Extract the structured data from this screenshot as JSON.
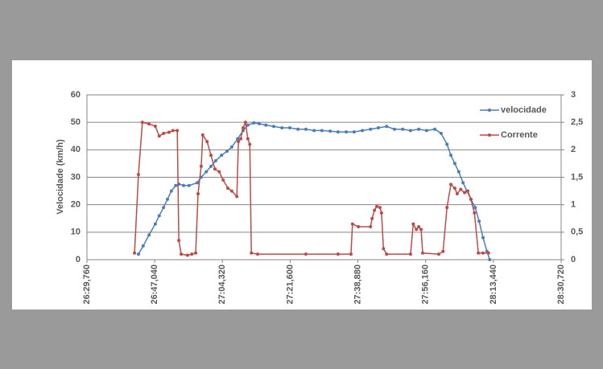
{
  "chart_data": {
    "type": "line",
    "y_label": "Velocidade (km/h)",
    "xlim": [
      1589.76,
      1710.72
    ],
    "xticks": [
      {
        "value": 1589.76,
        "label": "26:29,760"
      },
      {
        "value": 1607.04,
        "label": "26:47,040"
      },
      {
        "value": 1624.32,
        "label": "27:04,320"
      },
      {
        "value": 1641.6,
        "label": "27:21,600"
      },
      {
        "value": 1658.88,
        "label": "27:38,880"
      },
      {
        "value": 1676.16,
        "label": "27:56,160"
      },
      {
        "value": 1693.44,
        "label": "28:13,440"
      },
      {
        "value": 1710.72,
        "label": "28:30,720"
      }
    ],
    "ylim": [
      0,
      60
    ],
    "yticks": [
      0,
      10,
      20,
      30,
      40,
      50,
      60
    ],
    "y2lim": [
      0,
      3
    ],
    "y2ticks": [
      0,
      {
        "value": 0.5,
        "label": "0,5"
      },
      1,
      {
        "value": 1.5,
        "label": "1,5"
      },
      2,
      {
        "value": 2.5,
        "label": "2,5"
      },
      3
    ],
    "grid": true,
    "legend": "top-right",
    "series": [
      {
        "name": "velocidade",
        "color": "#4a7ebb",
        "x": [
          1602.9,
          1604.1,
          1605.6,
          1607.2,
          1608.2,
          1609.3,
          1610.3,
          1611.3,
          1612.4,
          1613.2,
          1614.4,
          1615.8,
          1617.9,
          1618.9,
          1620.2,
          1621.4,
          1622.6,
          1624.1,
          1625.5,
          1626.7,
          1628.2,
          1629.6,
          1630.8,
          1632.3,
          1633.7,
          1635.4,
          1637.4,
          1639.5,
          1641.5,
          1643.6,
          1645.6,
          1647.7,
          1649.7,
          1651.8,
          1653.8,
          1655.9,
          1657.9,
          1660.0,
          1662.1,
          1664.1,
          1666.2,
          1668.2,
          1670.3,
          1672.3,
          1674.4,
          1676.4,
          1678.5,
          1680.1,
          1681.6,
          1682.6,
          1683.6,
          1684.6,
          1685.7,
          1686.7,
          1687.7,
          1688.8,
          1689.8,
          1690.8,
          1691.8,
          1692.5
        ],
        "values": [
          2,
          5,
          9,
          13,
          16,
          19,
          22,
          25,
          27,
          27.5,
          27,
          27,
          28,
          30,
          32,
          34,
          36,
          38,
          39.5,
          41,
          44,
          47,
          49,
          49.8,
          49.5,
          49,
          48.5,
          48,
          48,
          47.5,
          47.5,
          47,
          47,
          46.8,
          46.5,
          46.5,
          46.5,
          47,
          47.5,
          48,
          48.5,
          47.5,
          47.5,
          47,
          47.5,
          47,
          47.5,
          46,
          42,
          38,
          35,
          32,
          28,
          25,
          22,
          19,
          14,
          8,
          3,
          0
        ]
      },
      {
        "name": "Corrente",
        "color": "#be4b48",
        "axis": "y2",
        "x": [
          1601.9,
          1602.9,
          1603.9,
          1605.6,
          1607.2,
          1608.2,
          1609.3,
          1610.7,
          1611.7,
          1612.8,
          1613.2,
          1613.8,
          1615.4,
          1616.5,
          1617.5,
          1618.1,
          1618.9,
          1619.3,
          1620.4,
          1621.4,
          1622.4,
          1623.5,
          1624.5,
          1625.7,
          1626.7,
          1628.0,
          1628.4,
          1629.0,
          1629.6,
          1630.2,
          1630.8,
          1631.3,
          1631.7,
          1633.3,
          1645.6,
          1653.8,
          1657.1,
          1657.5,
          1659.0,
          1662.1,
          1662.5,
          1663.1,
          1663.7,
          1664.5,
          1664.9,
          1665.4,
          1666.2,
          1672.3,
          1673.0,
          1673.8,
          1674.4,
          1675.0,
          1675.4,
          1679.5,
          1680.6,
          1681.6,
          1682.6,
          1683.6,
          1684.2,
          1685.1,
          1686.1,
          1686.9,
          1687.7,
          1688.6,
          1689.6,
          1690.8,
          1692.2
        ],
        "values": [
          0.12,
          1.55,
          2.5,
          2.47,
          2.43,
          2.25,
          2.3,
          2.32,
          2.35,
          2.35,
          0.35,
          0.1,
          0.08,
          0.1,
          0.12,
          1.2,
          1.7,
          2.27,
          2.15,
          1.9,
          1.65,
          1.6,
          1.45,
          1.3,
          1.25,
          1.15,
          2.15,
          2.2,
          2.4,
          2.5,
          2.2,
          2.1,
          0.12,
          0.1,
          0.1,
          0.1,
          0.1,
          0.65,
          0.6,
          0.6,
          0.75,
          0.9,
          0.97,
          0.95,
          0.85,
          0.2,
          0.1,
          0.1,
          0.65,
          0.55,
          0.6,
          0.55,
          0.12,
          0.1,
          0.15,
          0.95,
          1.37,
          1.3,
          1.2,
          1.28,
          1.22,
          1.25,
          1.1,
          0.85,
          0.12,
          0.12,
          0.12
        ]
      }
    ]
  }
}
